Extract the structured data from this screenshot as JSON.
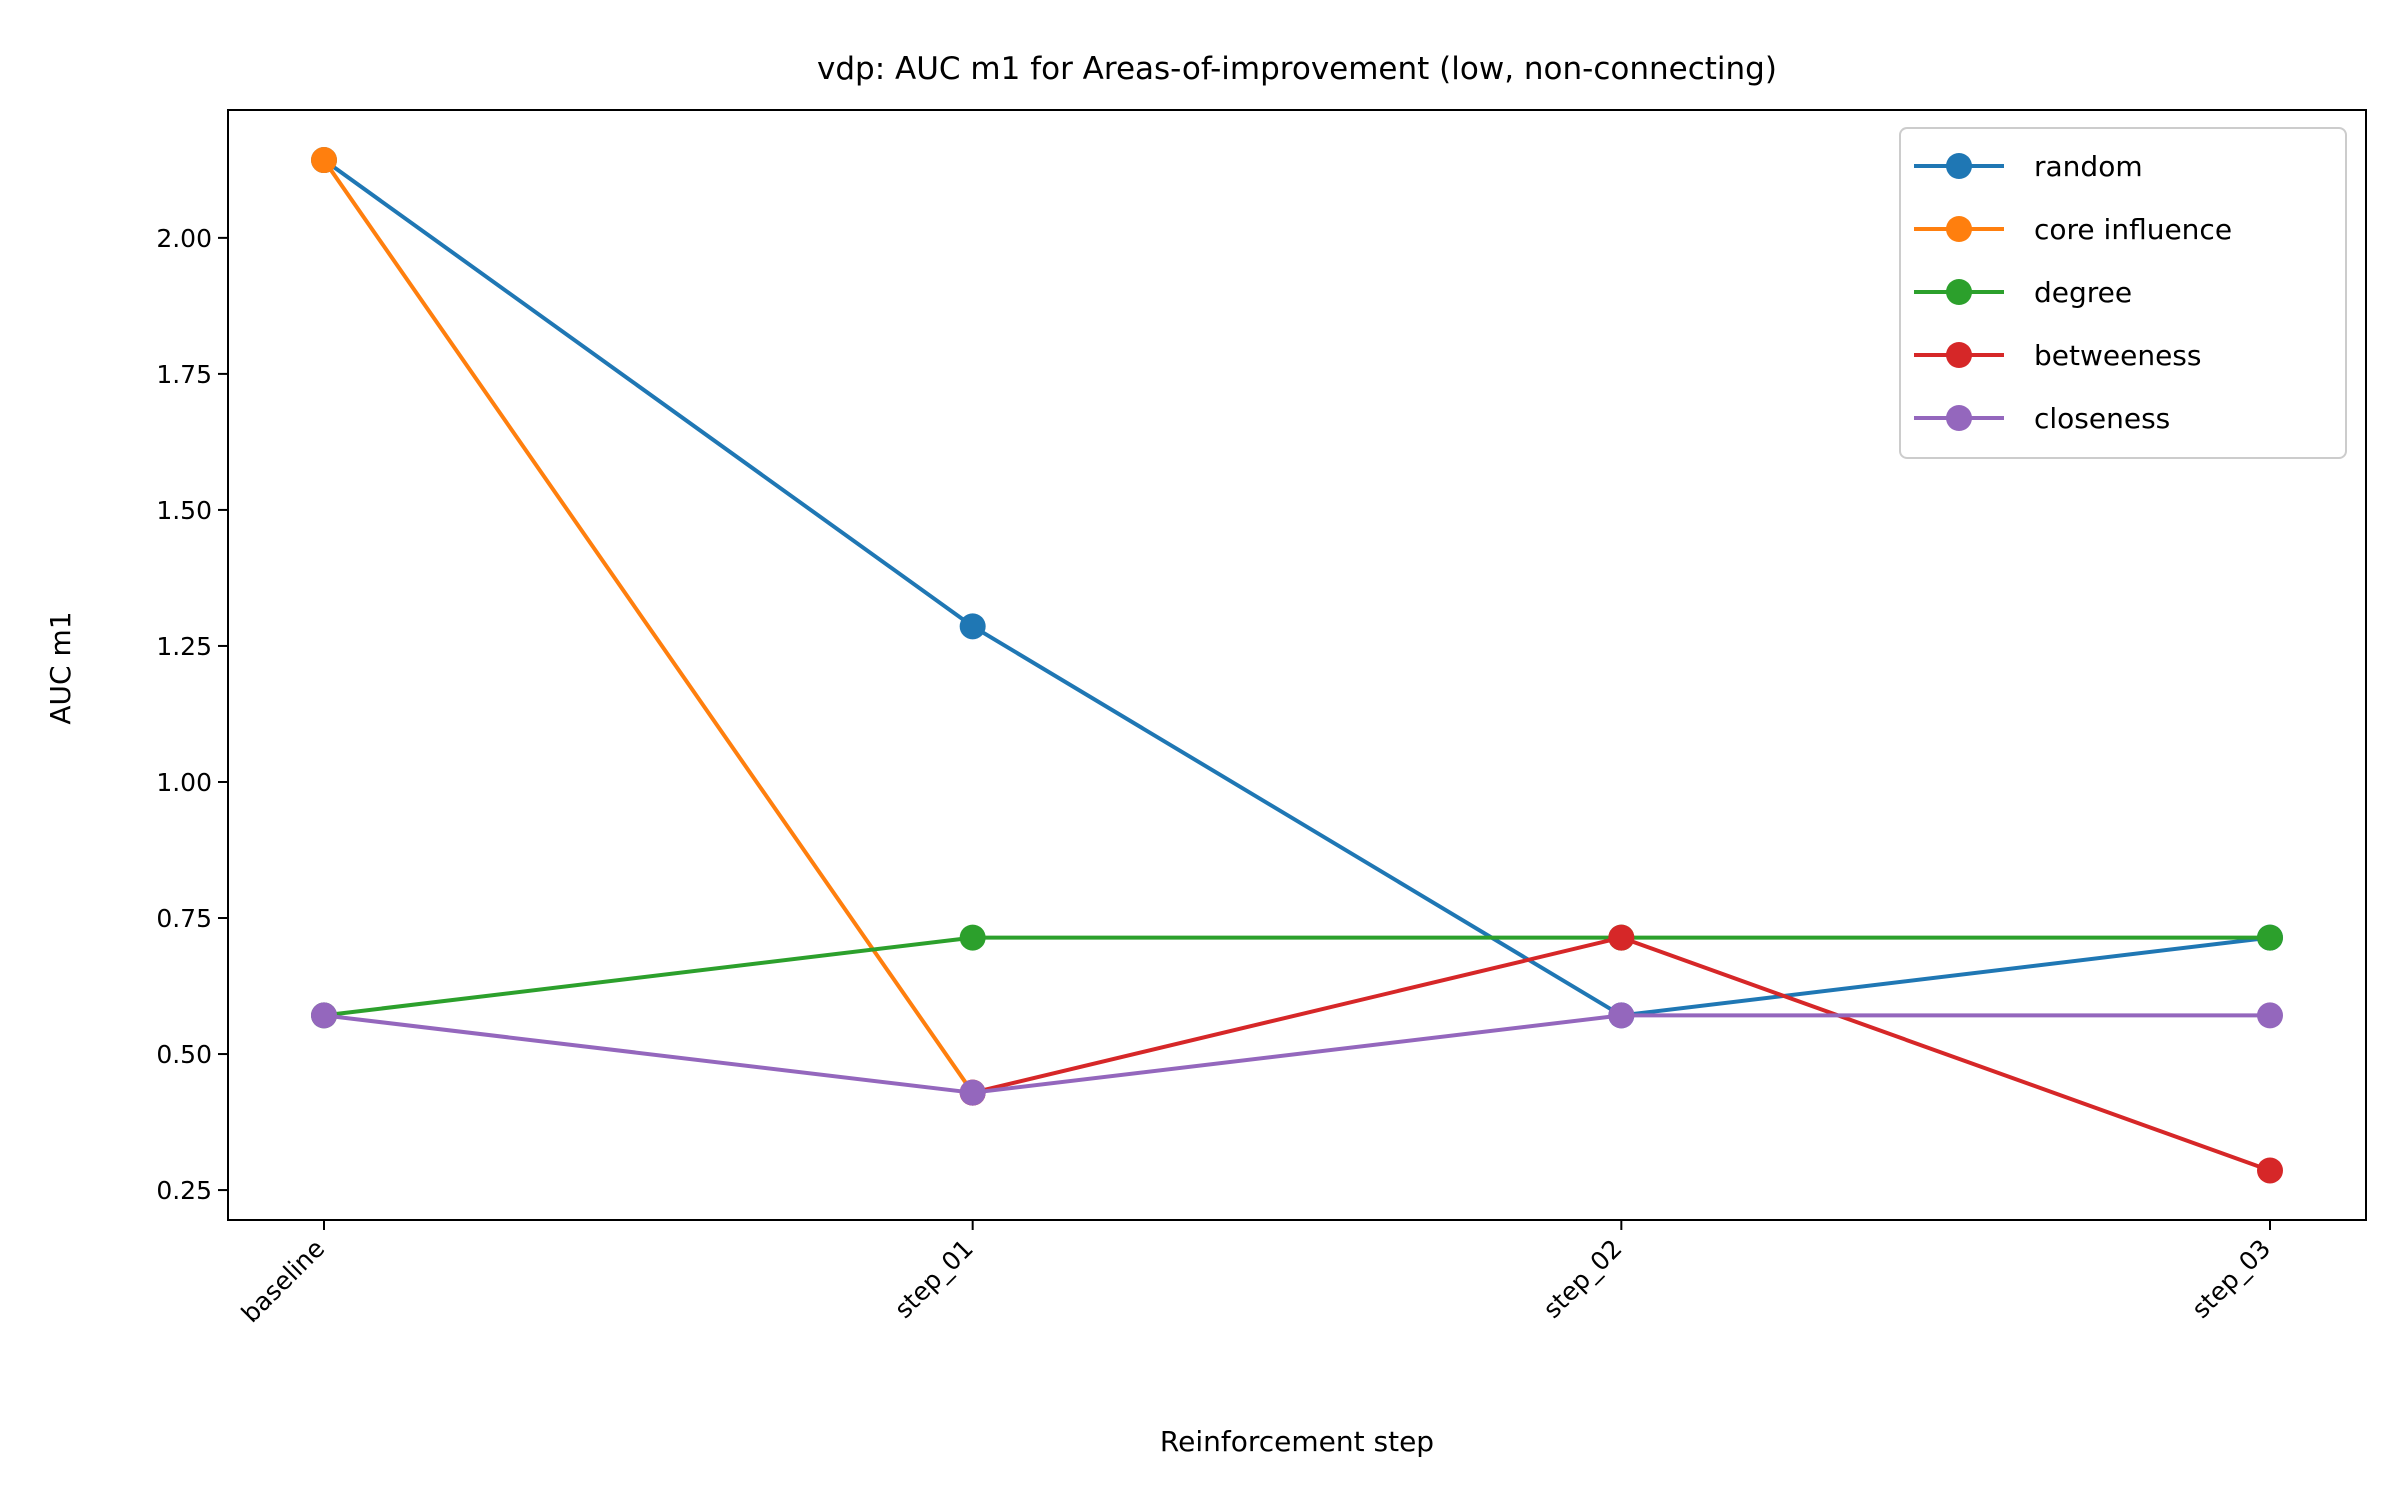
{
  "chart_data": {
    "type": "line",
    "title": "vdp: AUC m1 for Areas-of-improvement (low, non-connecting)",
    "xlabel": "Reinforcement step",
    "ylabel": "AUC m1",
    "categories": [
      "baseline",
      "step_01",
      "step_02",
      "step_03"
    ],
    "ylim": [
      0.195,
      2.235
    ],
    "yticks": [
      0.25,
      0.5,
      0.75,
      1.0,
      1.25,
      1.5,
      1.75,
      2.0
    ],
    "ytick_labels": [
      "0.25",
      "0.50",
      "0.75",
      "1.00",
      "1.25",
      "1.50",
      "1.75",
      "2.00"
    ],
    "grid": false,
    "legend_position": "top-right",
    "series": [
      {
        "name": "random",
        "color": "#1f77b4",
        "values": [
          2.143,
          1.286,
          0.571,
          0.714
        ]
      },
      {
        "name": "core influence",
        "color": "#ff7f0e",
        "values": [
          2.143,
          0.429,
          null,
          null
        ]
      },
      {
        "name": "degree",
        "color": "#2ca02c",
        "values": [
          0.571,
          0.714,
          0.714,
          0.714
        ]
      },
      {
        "name": "betweeness",
        "color": "#d62728",
        "values": [
          null,
          0.429,
          0.714,
          0.286
        ]
      },
      {
        "name": "closeness",
        "color": "#9467bd",
        "values": [
          0.571,
          0.429,
          0.571,
          0.571
        ]
      }
    ]
  }
}
